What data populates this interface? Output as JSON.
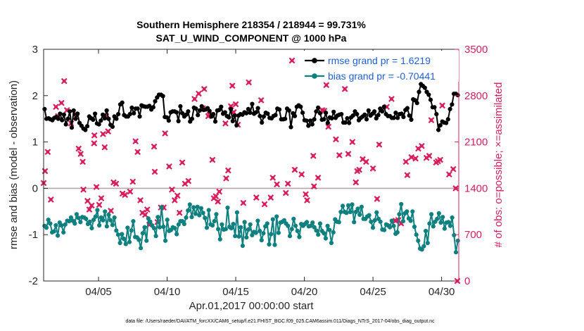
{
  "chart_data": {
    "type": "line",
    "title_line1": "Southern Hemisphere 218354 / 218944 = 99.731%",
    "title_line2": "SAT_U_WIND_COMPONENT @ 1000 hPa",
    "xlabel": "Apr.01,2017 00:00:00 start",
    "ylabel_left": "rmse and bias (model - observation)",
    "ylabel_right": "# of obs: o=possible; ×=assimilated",
    "footer": "data file: /Users/raeder/DAI/ATM_forcXX/CAM6_setup/f.e21.FHIST_BGC.f09_025.CAM6assim.011/Diags_NTrS_2017-04/obs_diag_output.nc",
    "xlim": [
      1,
      31.25
    ],
    "ylim_left": [
      -2,
      3
    ],
    "ylim_right": [
      0,
      3500
    ],
    "x_ticks": [
      5,
      10,
      15,
      20,
      25,
      30
    ],
    "x_tick_labels": [
      "04/05",
      "04/10",
      "04/15",
      "04/20",
      "04/25",
      "04/30"
    ],
    "y_ticks_left": [
      -2,
      -1,
      0,
      1,
      2,
      3
    ],
    "y_ticks_left_labels": [
      "-2",
      "-1",
      "0",
      "1",
      "2",
      "3"
    ],
    "y_ticks_right": [
      0,
      700,
      1400,
      2100,
      2800,
      3500
    ],
    "y_ticks_right_labels": [
      "0",
      "700",
      "1400",
      "2100",
      "2800",
      "3500"
    ],
    "colors": {
      "rmse": "#000000",
      "bias": "#0e8080",
      "obs": "#d81e5b",
      "zero": "#b7a4ad",
      "legend_text": "#1f5fd0"
    },
    "series": [
      {
        "name": "rmse grand pr = 1.6219",
        "values": [
          1.71,
          1.5,
          1.51,
          1.49,
          1.47,
          1.52,
          1.54,
          1.5,
          1.61,
          1.47,
          1.59,
          1.38,
          1.5,
          1.66,
          1.31,
          1.68,
          1.5,
          1.61,
          1.41,
          1.35,
          1.29,
          1.26,
          1.34,
          1.55,
          1.51,
          1.48,
          1.61,
          1.4,
          1.38,
          1.46,
          1.59,
          1.51,
          1.68,
          1.5,
          1.37,
          1.33,
          1.55,
          1.5,
          1.6,
          1.81,
          1.85,
          1.58,
          1.55,
          1.55,
          1.6,
          1.74,
          1.62,
          1.72,
          1.72,
          1.55,
          1.79,
          1.77,
          1.76,
          1.76,
          1.78,
          1.7,
          1.75,
          1.88,
          1.96,
          2.02,
          2.02,
          1.99,
          1.54,
          1.53,
          1.46,
          1.64,
          1.66,
          1.66,
          1.64,
          1.45,
          1.77,
          1.62,
          1.55,
          1.59,
          1.66,
          1.44,
          1.5,
          1.74,
          1.72,
          1.58,
          1.68,
          1.77,
          1.69,
          1.7,
          1.73,
          1.67,
          1.55,
          1.6,
          1.44,
          1.68,
          1.69,
          1.76,
          1.61,
          1.64,
          1.56,
          1.53,
          1.71,
          1.45,
          1.57,
          1.36,
          1.57,
          1.6,
          1.59,
          1.64,
          1.62,
          1.71,
          1.63,
          1.82,
          1.61,
          1.64,
          1.73,
          1.56,
          1.42,
          1.55,
          1.63,
          1.61,
          1.52,
          1.51,
          1.56,
          1.58,
          1.72,
          1.7,
          1.49,
          1.49,
          1.5,
          1.72,
          1.68,
          1.32,
          1.62,
          1.56,
          1.76,
          1.79,
          1.76,
          1.63,
          1.47,
          1.46,
          1.35,
          1.46,
          1.38,
          1.49,
          1.66,
          1.74,
          1.62,
          1.48,
          1.49,
          1.63,
          1.41,
          1.53,
          1.51,
          1.65,
          1.52,
          1.57,
          1.59,
          1.6,
          1.42,
          1.42,
          1.51,
          1.41,
          1.53,
          1.57,
          1.66,
          1.6,
          1.47,
          1.52,
          1.55,
          1.59,
          1.49,
          1.68,
          1.57,
          1.61,
          1.66,
          1.51,
          1.58,
          1.72,
          1.66,
          1.76,
          1.6,
          1.56,
          1.56,
          1.52,
          1.52,
          1.63,
          1.52,
          1.6,
          1.61,
          1.54,
          1.69,
          1.73,
          1.57,
          1.48,
          1.92,
          1.9,
          1.84,
          2.08,
          2.25,
          2.21,
          2.17,
          2.08,
          2.02,
          1.91,
          1.75,
          1.75,
          1.6,
          1.26,
          1.36,
          1.44,
          1.42,
          1.41,
          1.49,
          1.71,
          1.81,
          2.04,
          2.04,
          2.01
        ]
      },
      {
        "name": "bias grand pr = -0.70441",
        "values": [
          -0.81,
          -0.85,
          -0.68,
          -0.76,
          -0.95,
          -0.93,
          -0.8,
          -1.02,
          -0.74,
          -0.8,
          -0.95,
          -0.78,
          -0.7,
          -0.71,
          -0.63,
          -0.7,
          -0.76,
          -0.56,
          -0.64,
          -0.73,
          -0.62,
          -0.63,
          -0.66,
          -0.77,
          -0.72,
          -0.86,
          -0.68,
          -0.61,
          -0.47,
          -0.8,
          -0.63,
          -0.69,
          -0.5,
          -0.82,
          -0.57,
          -0.69,
          -0.79,
          -0.63,
          -0.91,
          -1.0,
          -1.18,
          -0.99,
          -1.09,
          -1.2,
          -0.85,
          -1.16,
          -0.91,
          -0.71,
          -1.05,
          -1.06,
          -1.11,
          -1.29,
          -0.97,
          -0.84,
          -1.13,
          -0.65,
          -0.72,
          -0.8,
          -0.86,
          -1.03,
          -0.62,
          -0.84,
          -0.41,
          -0.83,
          -1.13,
          -0.68,
          -0.92,
          -0.9,
          -0.84,
          -0.86,
          -0.99,
          -0.78,
          -0.71,
          -0.71,
          -0.77,
          -0.63,
          -0.48,
          -0.35,
          -0.62,
          -0.41,
          -0.55,
          -0.4,
          -0.58,
          -0.43,
          -0.53,
          -0.64,
          -0.85,
          -0.47,
          -0.78,
          -0.8,
          -0.71,
          -0.56,
          -0.88,
          -1.1,
          -0.78,
          -0.89,
          -0.88,
          -0.42,
          -0.83,
          -0.86,
          -0.77,
          -1.03,
          -0.52,
          -1.04,
          -0.84,
          -1.24,
          -0.73,
          -1.06,
          -0.89,
          -0.78,
          -1.01,
          -0.94,
          -0.96,
          -0.7,
          -0.92,
          -1.12,
          -0.97,
          -0.82,
          -0.76,
          -1.21,
          -0.99,
          -0.67,
          -1.22,
          -0.61,
          -0.96,
          -0.74,
          -0.72,
          -0.69,
          -0.76,
          -0.81,
          -1.03,
          -0.88,
          -0.66,
          -0.81,
          -0.92,
          -1.05,
          -0.77,
          -0.81,
          -0.77,
          -0.73,
          -0.82,
          -0.81,
          -0.74,
          -0.84,
          -0.91,
          -1.0,
          -0.76,
          -0.92,
          -0.97,
          -1.08,
          -0.81,
          -0.9,
          -1.18,
          -0.95,
          -0.67,
          -0.72,
          -0.73,
          -0.51,
          -0.38,
          -0.51,
          -0.53,
          -0.37,
          -0.51,
          -0.35,
          -0.73,
          -0.51,
          -0.44,
          -0.57,
          -0.4,
          -0.66,
          -0.66,
          -0.61,
          -0.58,
          -0.72,
          -0.85,
          -0.69,
          -0.52,
          -0.66,
          -0.72,
          -0.89,
          -0.9,
          -0.78,
          -0.8,
          -0.84,
          -0.7,
          -0.81,
          -0.98,
          -0.95,
          -0.56,
          -0.34,
          -0.71,
          -0.54,
          -0.5,
          -0.65,
          -0.7,
          -0.5,
          -0.83,
          -1.0,
          -1.13,
          -1.3,
          -1.32,
          -1.25,
          -0.92,
          -1.18,
          -0.76,
          -0.56,
          -0.82,
          -0.72,
          -0.66,
          -0.54,
          -0.74,
          -0.62,
          -0.87,
          -0.74,
          -0.73,
          -0.81,
          -0.63,
          -1.01,
          -1.38,
          -1.13
        ]
      }
    ],
    "obs_assimilated": [
      [
        1.0,
        1480
      ],
      [
        1.1,
        1660
      ],
      [
        1.3,
        1950
      ],
      [
        1.53,
        1230
      ],
      [
        1.9,
        2630
      ],
      [
        2.05,
        2490
      ],
      [
        2.3,
        2690
      ],
      [
        2.5,
        3020
      ],
      [
        2.7,
        2580
      ],
      [
        3.0,
        2380
      ],
      [
        3.3,
        2520
      ],
      [
        3.55,
        2000
      ],
      [
        3.7,
        1920
      ],
      [
        3.85,
        1800
      ],
      [
        3.9,
        1380
      ],
      [
        4.2,
        1210
      ],
      [
        4.33,
        1080
      ],
      [
        4.5,
        1140
      ],
      [
        4.68,
        2080
      ],
      [
        4.7,
        2200
      ],
      [
        4.85,
        1420
      ],
      [
        5.05,
        1150
      ],
      [
        5.2,
        1250
      ],
      [
        5.33,
        2220
      ],
      [
        5.45,
        2020
      ],
      [
        5.55,
        2490
      ],
      [
        5.7,
        2260
      ],
      [
        5.9,
        1060
      ],
      [
        6.1,
        1490
      ],
      [
        6.28,
        1470
      ],
      [
        6.75,
        1320
      ],
      [
        6.93,
        1300
      ],
      [
        7.3,
        1350
      ],
      [
        7.5,
        1500
      ],
      [
        7.7,
        2110
      ],
      [
        7.85,
        1950
      ],
      [
        8.05,
        1220
      ],
      [
        8.2,
        1030
      ],
      [
        8.4,
        1000
      ],
      [
        8.55,
        1080
      ],
      [
        8.7,
        850
      ],
      [
        9.05,
        2030
      ],
      [
        9.1,
        1650
      ],
      [
        9.3,
        890
      ],
      [
        9.55,
        1110
      ],
      [
        9.75,
        1110
      ],
      [
        9.85,
        2230
      ],
      [
        10.15,
        1730
      ],
      [
        10.35,
        1380
      ],
      [
        10.55,
        1220
      ],
      [
        10.75,
        1290
      ],
      [
        10.9,
        1030
      ],
      [
        11.1,
        1790
      ],
      [
        11.3,
        1470
      ],
      [
        11.55,
        1510
      ],
      [
        12.0,
        2750
      ],
      [
        12.3,
        2830
      ],
      [
        12.6,
        2610
      ],
      [
        12.7,
        2900
      ],
      [
        13.0,
        2490
      ],
      [
        13.1,
        2510
      ],
      [
        13.3,
        1830
      ],
      [
        13.4,
        1250
      ],
      [
        13.55,
        1280
      ],
      [
        13.7,
        1200
      ],
      [
        13.8,
        1350
      ],
      [
        14.25,
        2380
      ],
      [
        14.3,
        1550
      ],
      [
        14.45,
        1670
      ],
      [
        14.65,
        2640
      ],
      [
        14.75,
        2950
      ],
      [
        14.85,
        2550
      ],
      [
        15.0,
        2670
      ],
      [
        15.15,
        2360
      ],
      [
        15.55,
        1180
      ],
      [
        15.95,
        3000
      ],
      [
        16.5,
        1260
      ],
      [
        16.85,
        2730
      ],
      [
        17.1,
        1160
      ],
      [
        17.55,
        1260
      ],
      [
        17.7,
        1560
      ],
      [
        18.0,
        1460
      ],
      [
        18.65,
        1330
      ],
      [
        18.8,
        1470
      ],
      [
        19.1,
        3330
      ],
      [
        19.3,
        1680
      ],
      [
        19.8,
        1610
      ],
      [
        20.1,
        1310
      ],
      [
        20.2,
        1220
      ],
      [
        20.65,
        1890
      ],
      [
        20.7,
        1430
      ],
      [
        21.0,
        1560
      ],
      [
        21.3,
        2580
      ],
      [
        21.45,
        2570
      ],
      [
        21.6,
        2960
      ],
      [
        21.75,
        2330
      ],
      [
        21.95,
        3180
      ],
      [
        22.05,
        3140
      ],
      [
        22.15,
        3090
      ],
      [
        22.3,
        2140
      ],
      [
        22.55,
        1900
      ],
      [
        22.95,
        2900
      ],
      [
        23.2,
        1920
      ],
      [
        23.5,
        2100
      ],
      [
        23.75,
        1490
      ],
      [
        23.85,
        1660
      ],
      [
        24.0,
        1680
      ],
      [
        24.25,
        1840
      ],
      [
        24.5,
        1800
      ],
      [
        25.0,
        1700
      ],
      [
        25.3,
        1240
      ],
      [
        25.45,
        2060
      ],
      [
        26.0,
        2630
      ],
      [
        26.35,
        2750
      ],
      [
        26.65,
        910
      ],
      [
        26.85,
        920
      ],
      [
        27.05,
        870
      ],
      [
        27.4,
        1800
      ],
      [
        27.5,
        1600
      ],
      [
        27.8,
        1870
      ],
      [
        28.1,
        1850
      ],
      [
        28.3,
        2000
      ],
      [
        28.55,
        2040
      ],
      [
        28.9,
        1860
      ],
      [
        29.1,
        1890
      ],
      [
        29.25,
        2430
      ],
      [
        29.6,
        1790
      ],
      [
        29.73,
        1810
      ],
      [
        29.9,
        1830
      ],
      [
        30.05,
        2650
      ],
      [
        30.55,
        1610
      ],
      [
        30.85,
        1690
      ],
      [
        31.03,
        1400
      ],
      [
        31.15,
        0
      ]
    ]
  }
}
